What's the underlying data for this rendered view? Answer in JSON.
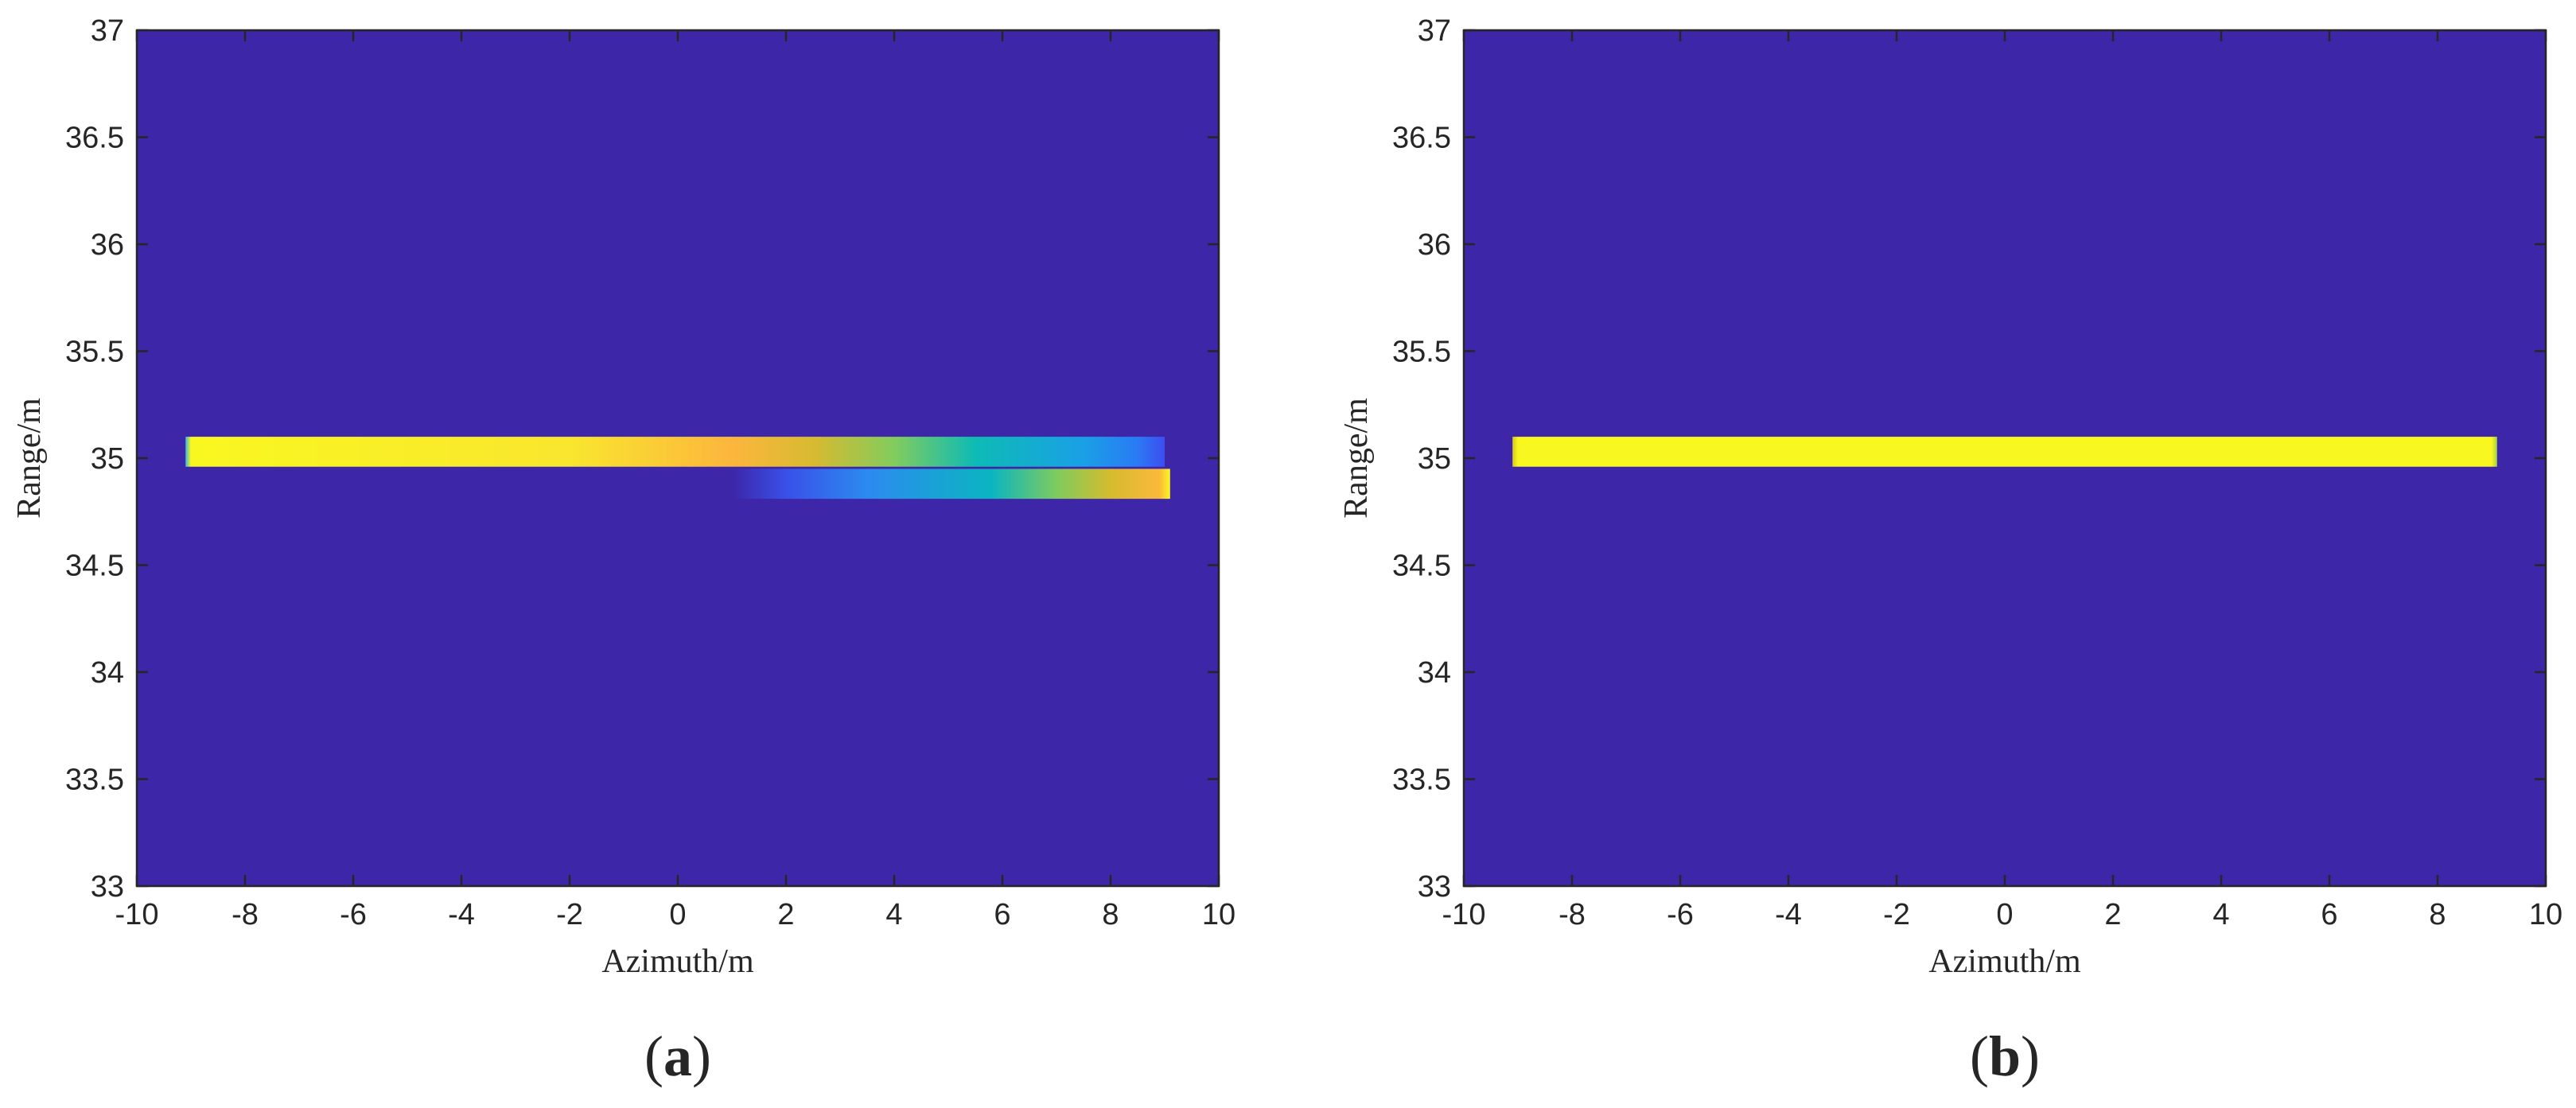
{
  "chart_data": [
    {
      "type": "heatmap",
      "panel_label": "(a)",
      "panel_label_letter": "a",
      "xlabel": "Azimuth/m",
      "ylabel": "Range/m",
      "xlim": [
        -10,
        10
      ],
      "ylim": [
        33,
        37
      ],
      "xticks": [
        -10,
        -8,
        -6,
        -4,
        -2,
        0,
        2,
        4,
        6,
        8,
        10
      ],
      "yticks": [
        33,
        33.5,
        34,
        34.5,
        35,
        35.5,
        36,
        36.5,
        37
      ],
      "xtick_labels": [
        "-10",
        "-8",
        "-6",
        "-4",
        "-2",
        "0",
        "2",
        "4",
        "6",
        "8",
        "10"
      ],
      "ytick_labels": [
        "33",
        "33.5",
        "34",
        "34.5",
        "35",
        "35.5",
        "36",
        "36.5",
        "37"
      ],
      "background_color": "#3d26a8",
      "grid": false,
      "legend": "none",
      "stripes": [
        {
          "name": "upper stripe",
          "x_range": [
            -9.1,
            9.0
          ],
          "y_range": [
            34.96,
            35.1
          ],
          "gradient": [
            {
              "x": -9.1,
              "color": "#35b8e0"
            },
            {
              "x": -9.0,
              "color": "#f9f720"
            },
            {
              "x": -2.0,
              "color": "#f9e62e"
            },
            {
              "x": 1.0,
              "color": "#fcb63d"
            },
            {
              "x": 2.5,
              "color": "#d8ba30"
            },
            {
              "x": 4.0,
              "color": "#82cc5d"
            },
            {
              "x": 5.5,
              "color": "#0dbbb5"
            },
            {
              "x": 7.5,
              "color": "#1aa0e6"
            },
            {
              "x": 8.5,
              "color": "#2a7af5"
            },
            {
              "x": 9.0,
              "color": "#3d4df0"
            }
          ]
        },
        {
          "name": "lower stripe",
          "x_range": [
            1.0,
            9.1
          ],
          "y_range": [
            34.81,
            34.95
          ],
          "gradient": [
            {
              "x": 1.0,
              "color": "#3d26a8"
            },
            {
              "x": 2.0,
              "color": "#3950e8"
            },
            {
              "x": 3.5,
              "color": "#2c8af0"
            },
            {
              "x": 5.8,
              "color": "#0bb5c0"
            },
            {
              "x": 7.0,
              "color": "#7dcc5e"
            },
            {
              "x": 8.0,
              "color": "#d6bb2e"
            },
            {
              "x": 8.9,
              "color": "#fbb93b"
            },
            {
              "x": 9.1,
              "color": "#f9f720"
            }
          ]
        }
      ]
    },
    {
      "type": "heatmap",
      "panel_label": "(b)",
      "panel_label_letter": "b",
      "xlabel": "Azimuth/m",
      "ylabel": "Range/m",
      "xlim": [
        -10,
        10
      ],
      "ylim": [
        33,
        37
      ],
      "xticks": [
        -10,
        -8,
        -6,
        -4,
        -2,
        0,
        2,
        4,
        6,
        8,
        10
      ],
      "yticks": [
        33,
        33.5,
        34,
        34.5,
        35,
        35.5,
        36,
        36.5,
        37
      ],
      "xtick_labels": [
        "-10",
        "-8",
        "-6",
        "-4",
        "-2",
        "0",
        "2",
        "4",
        "6",
        "8",
        "10"
      ],
      "ytick_labels": [
        "33",
        "33.5",
        "34",
        "34.5",
        "35",
        "35.5",
        "36",
        "36.5",
        "37"
      ],
      "background_color": "#3d26a8",
      "grid": false,
      "legend": "none",
      "stripes": [
        {
          "name": "stripe",
          "x_range": [
            -9.1,
            9.1
          ],
          "y_range": [
            34.96,
            35.1
          ],
          "gradient": [
            {
              "x": -9.1,
              "color": "#d6c81e"
            },
            {
              "x": -9.0,
              "color": "#f9f720"
            },
            {
              "x": 9.0,
              "color": "#f9f720"
            },
            {
              "x": 9.1,
              "color": "#9fd04a"
            }
          ]
        }
      ]
    }
  ]
}
